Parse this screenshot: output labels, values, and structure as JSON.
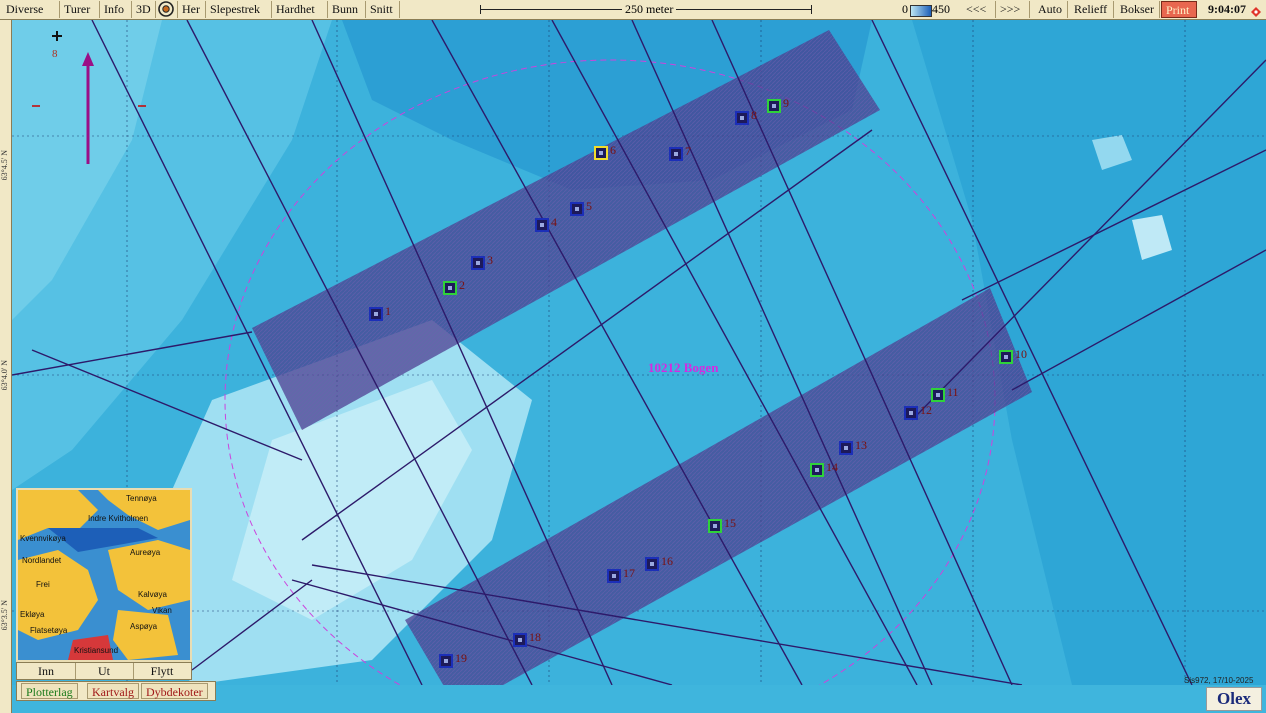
{
  "toolbar": {
    "left": [
      "Diverse",
      "Turer",
      "Info",
      "3D",
      "Her",
      "Slepestrek",
      "Hardhet",
      "Bunn",
      "Snitt"
    ],
    "scale_label": "250 meter",
    "depth_min": "0",
    "depth_max": "450",
    "nav_back": "<<<",
    "nav_fwd": ">>>",
    "right": [
      "Auto",
      "Relieff",
      "Bokser"
    ],
    "print": "Print",
    "clock": "9:04:07"
  },
  "map": {
    "place_name": "10212 Bogen",
    "north_marker": "8",
    "lat_labels": [
      "63°4.5' N",
      "63°4.0' N",
      "63°3.5' N"
    ],
    "credit": "Sis972, 17/10-2025",
    "accent_color": "#d42be0",
    "corridor_color": "#4a3c8c"
  },
  "waypoints": [
    {
      "label": "1",
      "color": "blue"
    },
    {
      "label": "2",
      "color": "green"
    },
    {
      "label": "3",
      "color": "blue"
    },
    {
      "label": "4",
      "color": "blue"
    },
    {
      "label": "5",
      "color": "blue"
    },
    {
      "label": "6",
      "color": "yellow"
    },
    {
      "label": "7",
      "color": "blue"
    },
    {
      "label": "8",
      "color": "blue"
    },
    {
      "label": "9",
      "color": "green"
    },
    {
      "label": "10",
      "color": "green"
    },
    {
      "label": "11",
      "color": "green"
    },
    {
      "label": "12",
      "color": "blue"
    },
    {
      "label": "13",
      "color": "blue"
    },
    {
      "label": "14",
      "color": "green"
    },
    {
      "label": "15",
      "color": "green"
    },
    {
      "label": "16",
      "color": "blue"
    },
    {
      "label": "17",
      "color": "blue"
    },
    {
      "label": "18",
      "color": "blue"
    },
    {
      "label": "19",
      "color": "blue"
    }
  ],
  "minimap": {
    "labels": [
      "Tennøya",
      "Indre Kvitholmen",
      "Kvennvikøya",
      "Aureøya",
      "Frei",
      "Flatsetøya",
      "Aspøya",
      "Kristiansund",
      "Kalvøya",
      "Vikan",
      "Ekløya",
      "Nordlandet"
    ],
    "buttons": [
      "Inn",
      "Ut",
      "Flytt"
    ]
  },
  "layers": [
    "Plotterlag",
    "Kartvalg",
    "Dybdekoter"
  ],
  "brand": "Olex"
}
